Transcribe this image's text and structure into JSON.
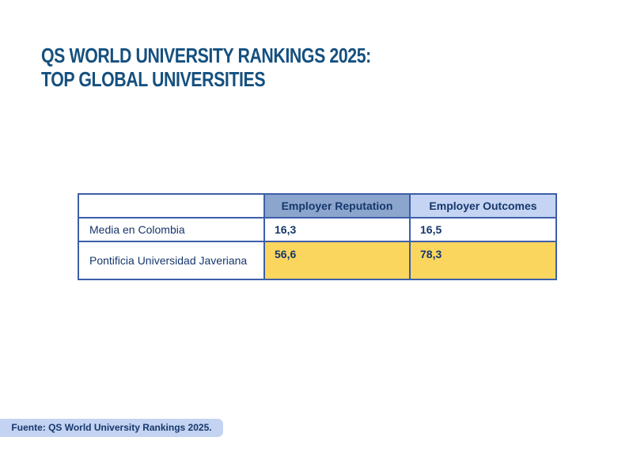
{
  "title": {
    "line1": "QS WORLD UNIVERSITY RANKINGS 2025:",
    "line2": "TOP GLOBAL UNIVERSITIES"
  },
  "table": {
    "columns": [
      "",
      "Employer Reputation",
      "Employer Outcomes"
    ],
    "rows": [
      {
        "label": "Media en Colombia",
        "values": [
          "16,3",
          "16,5"
        ]
      },
      {
        "label": "Pontificia Universidad Javeriana",
        "values": [
          "56,6",
          "78,3"
        ]
      }
    ]
  },
  "footer": {
    "source_label": "Fuente: QS World University Rankings 2025."
  },
  "colors": {
    "title_blue": "#15507F",
    "table_border_blue": "#3D5EA9",
    "header_reputation_bg": "#8CA5CD",
    "header_outcomes_bg": "#C4D4F2",
    "highlight_yellow": "#FBD65F",
    "text_navy": "#16376B",
    "source_badge_bg": "#C3D3F1"
  },
  "chart_data": {
    "type": "table",
    "title": "QS World University Rankings 2025: Top Global Universities",
    "columns": [
      "",
      "Employer Reputation",
      "Employer Outcomes"
    ],
    "rows": [
      {
        "label": "Media en Colombia",
        "employer_reputation": 16.3,
        "employer_outcomes": 16.5,
        "highlighted": false
      },
      {
        "label": "Pontificia Universidad Javeriana",
        "employer_reputation": 56.6,
        "employer_outcomes": 78.3,
        "highlighted": true
      }
    ],
    "source": "Fuente: QS World University Rankings 2025."
  }
}
